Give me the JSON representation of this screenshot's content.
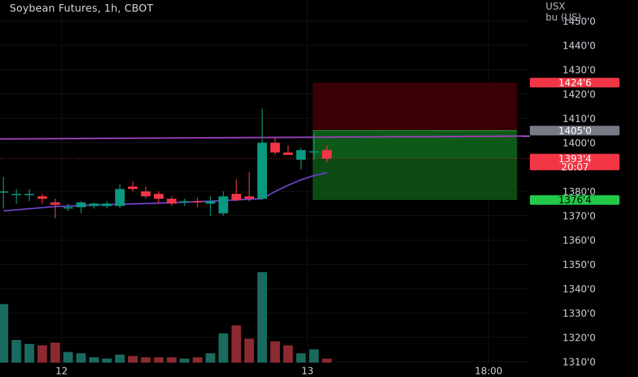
{
  "header": {
    "title": "Soybean Futures, 1h, CBOT",
    "currency_line1": "USX",
    "currency_line2": "bu (US)"
  },
  "axis": {
    "price_ticks": [
      "1450'0",
      "1440'0",
      "1430'0",
      "1420'0",
      "1410'0",
      "1400'0",
      "1380'0",
      "1370'0",
      "1360'0",
      "1350'0",
      "1340'0",
      "1330'0",
      "1320'0",
      "1310'0"
    ],
    "price_tick_values": [
      1450,
      1440,
      1430,
      1420,
      1410,
      1400,
      1380,
      1370,
      1360,
      1350,
      1340,
      1330,
      1320,
      1310
    ],
    "time_labels": [
      {
        "label": "12",
        "bar_index": 4.5
      },
      {
        "label": "13",
        "bar_index": 23.5
      },
      {
        "label": "18:00",
        "bar_index": 37.5
      }
    ]
  },
  "price_labels": [
    {
      "text": "1424'6",
      "value": 1424.75,
      "color": "#f23645"
    },
    {
      "text": "1405'0",
      "value": 1405.0,
      "color": "#787b86"
    },
    {
      "text": "1393'4",
      "value": 1393.5,
      "color": "#f23645",
      "sub": "20:07"
    },
    {
      "text": "1376'4",
      "value": 1376.5,
      "color": "#22c94a",
      "text_color": "#000000"
    }
  ],
  "colors": {
    "up": "#089981",
    "down": "#f23645",
    "up_vol": "#1a6b5f",
    "down_vol": "#8c2a31",
    "ma_purple": "#6a3fc0",
    "horizontal_line": "#9c3fb8",
    "stop_zone": "#3a0006",
    "target_zone": "#0c4a14"
  },
  "position": {
    "entry": 1393.5,
    "stop": 1424.75,
    "target": 1376.5,
    "upper_target_edge": 1405.0,
    "start_bar": 23.9,
    "end_bar": 39.7
  },
  "horizontal_line": {
    "start_value": 1402.3,
    "end_value": 1402.6
  },
  "chart_data": {
    "type": "candlestick",
    "title": "Soybean Futures, 1h, CBOT",
    "ylim": [
      1308,
      1457
    ],
    "candles": [
      {
        "o": 1380,
        "h": 1386,
        "l": 1373,
        "c": 1380
      },
      {
        "o": 1379,
        "h": 1381,
        "l": 1375,
        "c": 1379
      },
      {
        "o": 1379,
        "h": 1381,
        "l": 1376,
        "c": 1379
      },
      {
        "o": 1378,
        "h": 1379,
        "l": 1375,
        "c": 1377
      },
      {
        "o": 1375.5,
        "h": 1377,
        "l": 1369,
        "c": 1374.5
      },
      {
        "o": 1373.5,
        "h": 1375,
        "l": 1372,
        "c": 1373.5
      },
      {
        "o": 1373.5,
        "h": 1376,
        "l": 1371,
        "c": 1375.5
      },
      {
        "o": 1374,
        "h": 1375.5,
        "l": 1373,
        "c": 1375
      },
      {
        "o": 1374,
        "h": 1376,
        "l": 1373,
        "c": 1375
      },
      {
        "o": 1374,
        "h": 1383,
        "l": 1373,
        "c": 1381
      },
      {
        "o": 1382,
        "h": 1384,
        "l": 1380,
        "c": 1381
      },
      {
        "o": 1380,
        "h": 1382,
        "l": 1377,
        "c": 1378
      },
      {
        "o": 1379,
        "h": 1380,
        "l": 1375,
        "c": 1377
      },
      {
        "o": 1377,
        "h": 1378,
        "l": 1374,
        "c": 1375
      },
      {
        "o": 1375.5,
        "h": 1377,
        "l": 1374,
        "c": 1376
      },
      {
        "o": 1376,
        "h": 1377.5,
        "l": 1373.5,
        "c": 1375.5
      },
      {
        "o": 1375,
        "h": 1378,
        "l": 1370,
        "c": 1376
      },
      {
        "o": 1371,
        "h": 1380,
        "l": 1370,
        "c": 1378
      },
      {
        "o": 1379,
        "h": 1385,
        "l": 1376,
        "c": 1376.5
      },
      {
        "o": 1378,
        "h": 1388,
        "l": 1376,
        "c": 1377
      },
      {
        "o": 1377,
        "h": 1414,
        "l": 1376.5,
        "c": 1400
      },
      {
        "o": 1400,
        "h": 1402,
        "l": 1395,
        "c": 1396
      },
      {
        "o": 1396,
        "h": 1399,
        "l": 1395,
        "c": 1395
      },
      {
        "o": 1393,
        "h": 1398,
        "l": 1389,
        "c": 1397
      },
      {
        "o": 1396,
        "h": 1404,
        "l": 1393,
        "c": 1396.5
      },
      {
        "o": 1397,
        "h": 1399,
        "l": 1392,
        "c": 1393.5
      }
    ],
    "volumes": [
      44,
      17,
      14,
      13,
      15,
      8,
      7,
      4,
      3,
      6,
      5,
      4,
      4,
      4,
      3,
      4,
      7,
      22,
      28,
      18,
      68,
      16,
      13,
      7,
      10,
      3
    ],
    "moving_average": [
      {
        "bar": 0,
        "value": 1372
      },
      {
        "bar": 4,
        "value": 1373.8
      },
      {
        "bar": 8,
        "value": 1374.6
      },
      {
        "bar": 12,
        "value": 1375.2
      },
      {
        "bar": 16,
        "value": 1376
      },
      {
        "bar": 19,
        "value": 1376.8
      },
      {
        "bar": 20,
        "value": 1377
      },
      {
        "bar": 21,
        "value": 1380
      },
      {
        "bar": 22,
        "value": 1382.5
      },
      {
        "bar": 23,
        "value": 1384.8
      },
      {
        "bar": 24,
        "value": 1386.5
      },
      {
        "bar": 25,
        "value": 1387.7
      }
    ]
  }
}
